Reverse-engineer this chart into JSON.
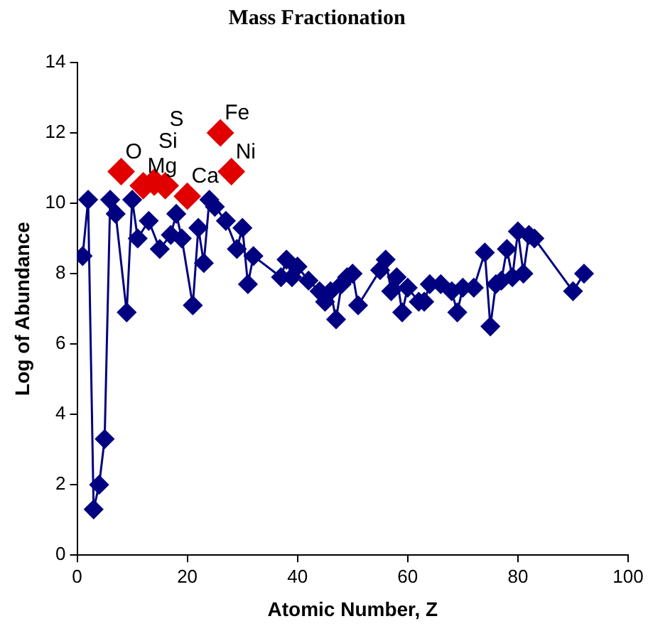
{
  "chart_data": {
    "type": "line",
    "title": "Mass Fractionation",
    "xlabel": "Atomic Number, Z",
    "ylabel": "Log of Abundance",
    "xlim": [
      0,
      100
    ],
    "xticks": [
      0,
      20,
      40,
      60,
      80,
      100
    ],
    "ylim": [
      0,
      14
    ],
    "yticks": [
      0,
      2,
      4,
      6,
      8,
      10,
      12,
      14
    ],
    "grid": false,
    "legend": false,
    "marker": "diamond",
    "line_style": "solid",
    "series": [
      {
        "color": "#000080",
        "x": [
          1,
          2,
          3,
          4,
          5,
          6,
          7,
          9,
          10,
          11,
          13,
          15,
          17,
          18,
          19,
          21,
          22,
          23,
          24,
          25,
          27,
          29,
          30,
          31,
          32,
          37,
          38,
          39,
          40,
          42,
          44,
          45,
          46,
          47,
          48,
          49,
          50,
          51,
          55,
          56,
          57,
          58,
          59,
          60,
          62,
          63,
          64,
          66,
          68,
          69,
          70,
          72,
          74,
          75,
          76,
          77,
          78,
          79,
          80,
          81,
          82,
          83,
          90,
          92
        ],
        "values": [
          8.5,
          10.1,
          1.3,
          2.0,
          3.3,
          10.1,
          9.7,
          6.9,
          10.1,
          9.0,
          9.5,
          8.7,
          9.1,
          9.7,
          9.0,
          7.1,
          9.3,
          8.3,
          10.1,
          9.9,
          9.5,
          8.7,
          9.3,
          7.7,
          8.5,
          7.9,
          8.4,
          7.9,
          8.2,
          7.8,
          7.5,
          7.2,
          7.5,
          6.7,
          7.7,
          7.9,
          8.0,
          7.1,
          8.1,
          8.4,
          7.5,
          7.9,
          6.9,
          7.6,
          7.2,
          7.2,
          7.7,
          7.7,
          7.5,
          6.9,
          7.6,
          7.6,
          8.6,
          6.5,
          7.7,
          7.8,
          8.7,
          7.9,
          9.2,
          8.0,
          9.1,
          9.0,
          7.5,
          8.0
        ]
      },
      {
        "type": "scatter",
        "color": "#e00000",
        "x": [
          8,
          12,
          14,
          16,
          20,
          26,
          28
        ],
        "values": [
          10.9,
          10.5,
          10.6,
          10.5,
          10.2,
          12.0,
          10.9
        ]
      }
    ],
    "annotations": [
      {
        "text": "O",
        "x": 8,
        "y": 10.9
      },
      {
        "text": "Mg",
        "x": 12,
        "y": 10.5
      },
      {
        "text": "Si",
        "x": 14,
        "y": 10.6
      },
      {
        "text": "S",
        "x": 16,
        "y": 10.5
      },
      {
        "text": "Ca",
        "x": 20,
        "y": 10.2
      },
      {
        "text": "Fe",
        "x": 26,
        "y": 12.0
      },
      {
        "text": "Ni",
        "x": 28,
        "y": 10.9
      }
    ]
  }
}
